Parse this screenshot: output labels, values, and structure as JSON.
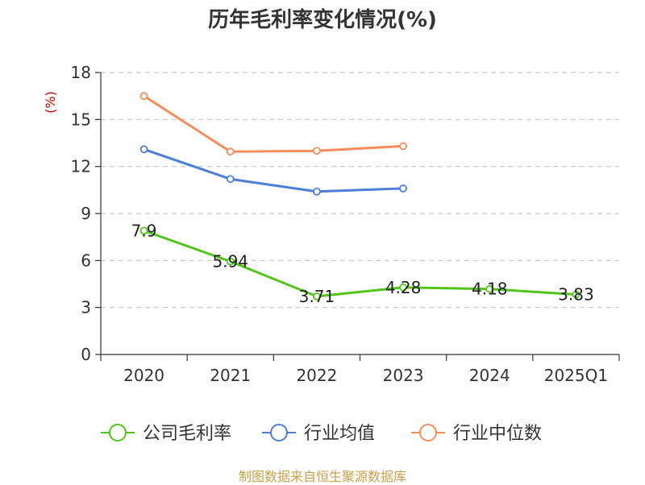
{
  "chart_data": {
    "type": "line",
    "title": "历年毛利率变化情况(%)",
    "ylabel": "(%)",
    "categories": [
      "2020",
      "2021",
      "2022",
      "2023",
      "2024",
      "2025Q1"
    ],
    "ylim": [
      0,
      18
    ],
    "yticks": [
      0,
      3,
      6,
      9,
      12,
      15,
      18
    ],
    "grid": true,
    "legend_position": "bottom",
    "series": [
      {
        "name": "公司毛利率",
        "color": "#52c41a",
        "values": [
          7.9,
          5.94,
          3.71,
          4.28,
          4.18,
          3.83
        ],
        "labels": [
          "7.9",
          "5.94",
          "3.71",
          "4.28",
          "4.18",
          "3.83"
        ]
      },
      {
        "name": "行业均值",
        "color": "#4e7fd6",
        "values": [
          13.1,
          11.2,
          10.4,
          10.6,
          null,
          null
        ]
      },
      {
        "name": "行业中位数",
        "color": "#f78c5a",
        "values": [
          16.5,
          12.95,
          13.0,
          13.3,
          null,
          null
        ]
      }
    ]
  },
  "source": "制图数据来自恒生聚源数据库"
}
